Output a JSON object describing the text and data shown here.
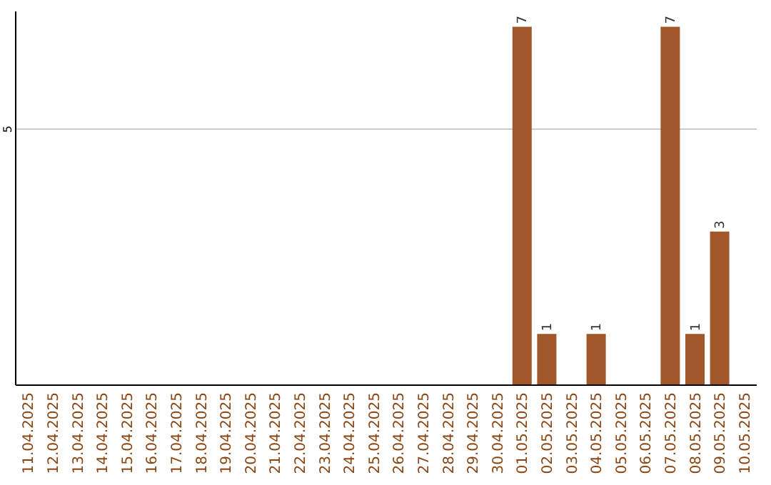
{
  "chart_data": {
    "type": "bar",
    "categories": [
      "11.04.2025",
      "12.04.2025",
      "13.04.2025",
      "14.04.2025",
      "15.04.2025",
      "16.04.2025",
      "17.04.2025",
      "18.04.2025",
      "19.04.2025",
      "20.04.2025",
      "21.04.2025",
      "22.04.2025",
      "23.04.2025",
      "24.04.2025",
      "25.04.2025",
      "26.04.2025",
      "27.04.2025",
      "28.04.2025",
      "29.04.2025",
      "30.04.2025",
      "01.05.2025",
      "02.05.2025",
      "03.05.2025",
      "04.05.2025",
      "05.05.2025",
      "06.05.2025",
      "07.05.2025",
      "08.05.2025",
      "09.05.2025",
      "10.05.2025"
    ],
    "values": [
      null,
      null,
      null,
      null,
      null,
      null,
      null,
      null,
      null,
      null,
      null,
      null,
      null,
      null,
      null,
      null,
      null,
      null,
      null,
      null,
      7,
      1,
      null,
      1,
      null,
      null,
      7,
      1,
      3,
      null
    ],
    "value_labels": [
      null,
      null,
      null,
      null,
      null,
      null,
      null,
      null,
      null,
      null,
      null,
      null,
      null,
      null,
      null,
      null,
      null,
      null,
      null,
      null,
      "7",
      "1",
      null,
      "1",
      null,
      null,
      "7",
      "1",
      "3",
      null
    ],
    "color": "#a0582a",
    "ylim": [
      0,
      7.3
    ],
    "yticks": [
      5
    ],
    "grid": "y"
  }
}
